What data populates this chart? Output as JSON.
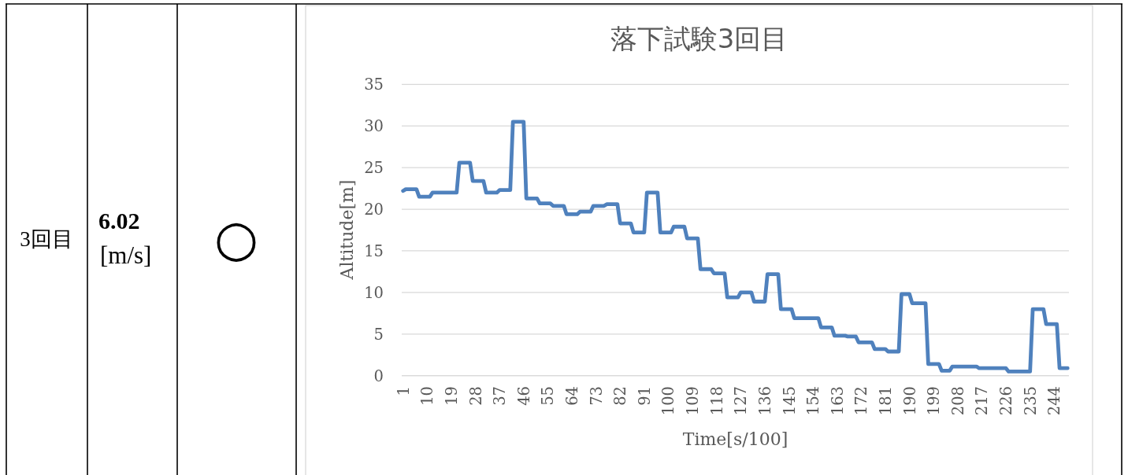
{
  "chart_data": [
    {
      "type": "other",
      "annotations": [
        "3回目",
        "6.02",
        "[m/s]",
        "○"
      ]
    },
    {
      "type": "line",
      "title": "落下試験3回目",
      "xlabel": "Time[s/100]",
      "ylabel": "Altitude[m]",
      "x": [
        1,
        2,
        6,
        7,
        11,
        12,
        21,
        22,
        26,
        27,
        31,
        32,
        36,
        37,
        41,
        42,
        46,
        47,
        51,
        52,
        56,
        57,
        61,
        62,
        66,
        67,
        71,
        72,
        76,
        77,
        81,
        82,
        86,
        87,
        91,
        92,
        96,
        97,
        101,
        102,
        106,
        107,
        111,
        112,
        116,
        117,
        121,
        122,
        126,
        127,
        131,
        132,
        136,
        137,
        141,
        142,
        146,
        147,
        156,
        157,
        161,
        162,
        166,
        167,
        170,
        171,
        176,
        177,
        181,
        182,
        186,
        187,
        190,
        191,
        196,
        197,
        201,
        202,
        205,
        206,
        215,
        216,
        226,
        227,
        235,
        236,
        240,
        241,
        245,
        246,
        249
      ],
      "values": [
        22.2,
        22.4,
        22.4,
        21.5,
        21.5,
        22.0,
        22.0,
        25.6,
        25.6,
        23.4,
        23.4,
        22.0,
        22.0,
        22.3,
        22.3,
        30.5,
        30.5,
        21.3,
        21.3,
        20.7,
        20.7,
        20.4,
        20.4,
        19.4,
        19.4,
        19.7,
        19.7,
        20.4,
        20.4,
        20.6,
        20.6,
        18.3,
        18.3,
        17.2,
        17.2,
        22.0,
        22.0,
        17.2,
        17.2,
        17.9,
        17.9,
        16.5,
        16.5,
        12.8,
        12.8,
        12.3,
        12.3,
        9.4,
        9.4,
        10.0,
        10.0,
        8.9,
        8.9,
        12.2,
        12.2,
        8.0,
        8.0,
        6.9,
        6.9,
        5.8,
        5.8,
        4.8,
        4.8,
        4.7,
        4.7,
        4.0,
        4.0,
        3.2,
        3.2,
        2.9,
        2.9,
        9.8,
        9.8,
        8.7,
        8.7,
        1.4,
        1.4,
        0.6,
        0.6,
        1.1,
        1.1,
        0.9,
        0.9,
        0.5,
        0.5,
        8.0,
        8.0,
        6.2,
        6.2,
        0.9,
        0.9
      ],
      "color": "#4f81bd",
      "line_style": "solid",
      "grid": "y",
      "xlim": [
        0.5,
        249.5
      ],
      "xticks": [
        1,
        10,
        19,
        28,
        37,
        46,
        55,
        64,
        73,
        82,
        91,
        100,
        109,
        118,
        127,
        136,
        145,
        154,
        163,
        172,
        181,
        190,
        199,
        208,
        217,
        226,
        235,
        244
      ],
      "ylim": [
        0,
        35
      ],
      "yticks": [
        0,
        5,
        10,
        15,
        20,
        25,
        30,
        35
      ]
    }
  ]
}
